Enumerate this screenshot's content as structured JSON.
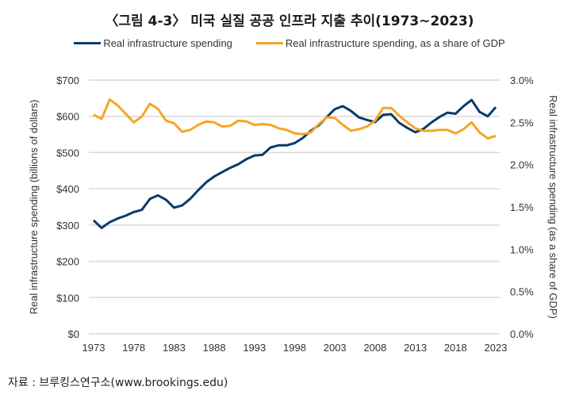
{
  "title": "〈그림 4-3〉 미국 실질 공공 인프라 지출 추이(1973~2023)",
  "source": "자료 : 브루킹스연구소(www.brookings.edu)",
  "chart_data": {
    "type": "line",
    "title": "〈그림 4-3〉 미국 실질 공공 인프라 지출 추이(1973~2023)",
    "ylabel": "Real infrastructure spending (billions of dollars)",
    "ylabel_right": "Real infrastructure spending (as a share of GDP)",
    "ylim": [
      0,
      700
    ],
    "ylim_right": [
      0,
      3.0
    ],
    "y_ticks": [
      "$0",
      "$100",
      "$200",
      "$300",
      "$400",
      "$500",
      "$600",
      "$700"
    ],
    "y_right_ticks": [
      "0.0%",
      "0.5%",
      "1.0%",
      "1.5%",
      "2.0%",
      "2.5%",
      "3.0%"
    ],
    "x_ticks": [
      "1973",
      "1978",
      "1983",
      "1988",
      "1993",
      "1998",
      "2003",
      "2008",
      "2013",
      "2018",
      "2023"
    ],
    "grid": true,
    "legend_position": "top",
    "x": [
      1973,
      1974,
      1975,
      1976,
      1977,
      1978,
      1979,
      1980,
      1981,
      1982,
      1983,
      1984,
      1985,
      1986,
      1987,
      1988,
      1989,
      1990,
      1991,
      1992,
      1993,
      1994,
      1995,
      1996,
      1997,
      1998,
      1999,
      2000,
      2001,
      2002,
      2003,
      2004,
      2005,
      2006,
      2007,
      2008,
      2009,
      2010,
      2011,
      2012,
      2013,
      2014,
      2015,
      2016,
      2017,
      2018,
      2019,
      2020,
      2021,
      2022,
      2023
    ],
    "series": [
      {
        "name": "Real infrastructure spending",
        "axis": "left",
        "color": "#0d3a6b",
        "values": [
          313,
          292,
          308,
          318,
          326,
          336,
          342,
          372,
          382,
          370,
          348,
          354,
          372,
          396,
          418,
          434,
          446,
          458,
          468,
          482,
          492,
          494,
          514,
          520,
          520,
          526,
          540,
          560,
          575,
          598,
          620,
          628,
          615,
          597,
          590,
          584,
          604,
          606,
          582,
          568,
          556,
          565,
          583,
          598,
          610,
          607,
          628,
          645,
          612,
          600,
          625
        ]
      },
      {
        "name": "Real infrastructure spending, as a share of GDP",
        "axis": "right",
        "color": "#f5a623",
        "values": [
          2.59,
          2.54,
          2.77,
          2.7,
          2.6,
          2.5,
          2.57,
          2.72,
          2.66,
          2.52,
          2.49,
          2.39,
          2.41,
          2.47,
          2.51,
          2.5,
          2.45,
          2.46,
          2.52,
          2.51,
          2.47,
          2.48,
          2.47,
          2.43,
          2.41,
          2.37,
          2.36,
          2.38,
          2.48,
          2.56,
          2.55,
          2.47,
          2.4,
          2.42,
          2.45,
          2.52,
          2.67,
          2.67,
          2.58,
          2.5,
          2.43,
          2.4,
          2.4,
          2.41,
          2.41,
          2.37,
          2.42,
          2.5,
          2.38,
          2.31,
          2.34
        ]
      }
    ]
  }
}
